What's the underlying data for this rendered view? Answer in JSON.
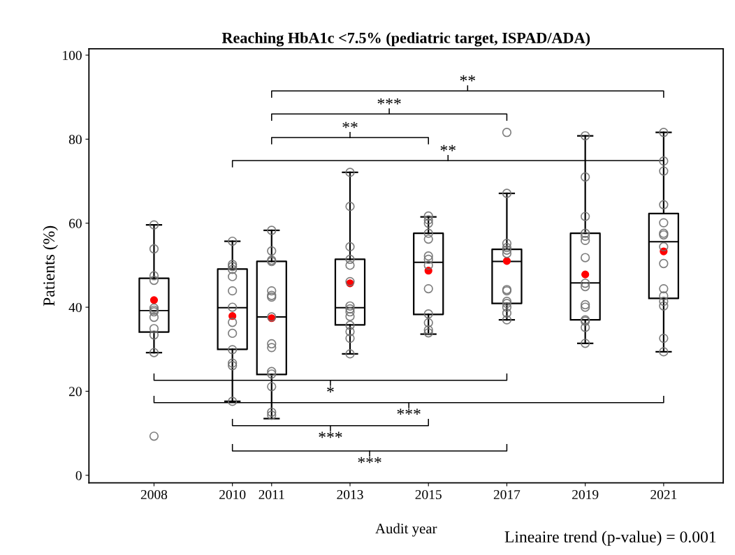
{
  "chart_data": {
    "type": "box",
    "title": "Reaching HbA1c <7.5% (pediatric target, ISPAD/ADA)",
    "xlabel": "Audit year",
    "ylabel": "Patients (%)",
    "x": [
      2008,
      2010,
      2011,
      2013,
      2015,
      2017,
      2019,
      2021
    ],
    "boxes": [
      {
        "low": 29.2,
        "q1": 34.1,
        "median": 39.2,
        "q3": 46.9,
        "high": 59.6
      },
      {
        "low": 17.6,
        "q1": 30.0,
        "median": 39.9,
        "q3": 49.1,
        "high": 55.7
      },
      {
        "low": 13.5,
        "q1": 24.0,
        "median": 37.7,
        "q3": 50.9,
        "high": 58.3
      },
      {
        "low": 28.9,
        "q1": 35.8,
        "median": 39.9,
        "q3": 51.4,
        "high": 72.1
      },
      {
        "low": 33.6,
        "q1": 38.3,
        "median": 50.7,
        "q3": 57.6,
        "high": 61.5
      },
      {
        "low": 37.0,
        "q1": 40.9,
        "median": 50.9,
        "q3": 53.8,
        "high": 67.1
      },
      {
        "low": 31.4,
        "q1": 37.0,
        "median": 45.8,
        "q3": 57.6,
        "high": 80.8
      },
      {
        "low": 29.4,
        "q1": 42.1,
        "median": 55.6,
        "q3": 62.3,
        "high": 81.6
      }
    ],
    "series": [
      {
        "type": "scatter",
        "color": "#ff0000",
        "x": [
          2008,
          2010,
          2011,
          2013,
          2015,
          2017,
          2019,
          2021
        ],
        "values": [
          41.7,
          37.9,
          37.4,
          45.7,
          48.7,
          51.0,
          47.8,
          53.3
        ]
      },
      {
        "type": "scatter",
        "color": "#707070",
        "x": [
          2008,
          2008,
          2008,
          2008,
          2008,
          2008,
          2008,
          2008,
          2008,
          2008,
          2008,
          2008,
          2010,
          2010,
          2010,
          2010,
          2010,
          2010,
          2010,
          2010,
          2010,
          2010,
          2010,
          2010,
          2010,
          2011,
          2011,
          2011,
          2011,
          2011,
          2011,
          2011,
          2011,
          2011,
          2011,
          2011,
          2011,
          2011,
          2011,
          2011,
          2013,
          2013,
          2013,
          2013,
          2013,
          2013,
          2013,
          2013,
          2013,
          2013,
          2013,
          2013,
          2013,
          2013,
          2015,
          2015,
          2015,
          2015,
          2015,
          2015,
          2015,
          2015,
          2015,
          2015,
          2015,
          2015,
          2015,
          2017,
          2017,
          2017,
          2017,
          2017,
          2017,
          2017,
          2017,
          2017,
          2017,
          2017,
          2017,
          2017,
          2019,
          2019,
          2019,
          2019,
          2019,
          2019,
          2019,
          2019,
          2019,
          2019,
          2019,
          2019,
          2019,
          2019,
          2019,
          2021,
          2021,
          2021,
          2021,
          2021,
          2021,
          2021,
          2021,
          2021,
          2021,
          2021,
          2021,
          2021,
          2021,
          2021
        ],
        "values": [
          59.6,
          53.9,
          47.5,
          46.4,
          39.8,
          38.9,
          37.6,
          34.9,
          33.4,
          29.2,
          9.3,
          39.3,
          55.7,
          50.2,
          49.7,
          49.0,
          47.3,
          43.9,
          40.0,
          36.4,
          33.8,
          29.9,
          26.7,
          26.1,
          17.6,
          58.3,
          53.4,
          51.2,
          50.9,
          43.9,
          42.8,
          42.4,
          37.7,
          31.3,
          30.4,
          24.7,
          24.1,
          21.1,
          15.0,
          14.3,
          72.1,
          64.0,
          54.4,
          51.4,
          50.0,
          46.1,
          40.3,
          39.6,
          38.9,
          37.8,
          35.7,
          34.2,
          32.6,
          28.9,
          61.7,
          60.8,
          60.0,
          57.6,
          56.2,
          52.2,
          51.4,
          50.0,
          44.4,
          38.4,
          36.3,
          34.6,
          33.9,
          81.6,
          67.1,
          55.2,
          54.2,
          53.6,
          52.8,
          44.2,
          43.9,
          41.4,
          40.9,
          40.0,
          38.6,
          37.0,
          80.8,
          71.0,
          61.6,
          57.6,
          56.9,
          55.9,
          51.8,
          45.7,
          44.9,
          40.6,
          40.0,
          37.0,
          36.7,
          35.2,
          31.4,
          81.6,
          74.8,
          72.4,
          64.4,
          60.1,
          57.6,
          57.2,
          54.4,
          50.4,
          44.4,
          42.7,
          41.4,
          40.3,
          32.6,
          29.4
        ]
      }
    ],
    "marker": "circle",
    "xlim": [
      2006.34,
      2022.52
    ],
    "ylim": [
      -1.8,
      101.5
    ],
    "xticks": [
      2008,
      2010,
      2011,
      2013,
      2015,
      2017,
      2019,
      2021
    ],
    "yticks": [
      0,
      20,
      40,
      60,
      80,
      100
    ],
    "grid": false,
    "annotations": [
      "**",
      "***",
      "**",
      "**",
      "*",
      "***",
      "***",
      "***",
      "Lineaire trend (p-value) = 0.001"
    ]
  }
}
